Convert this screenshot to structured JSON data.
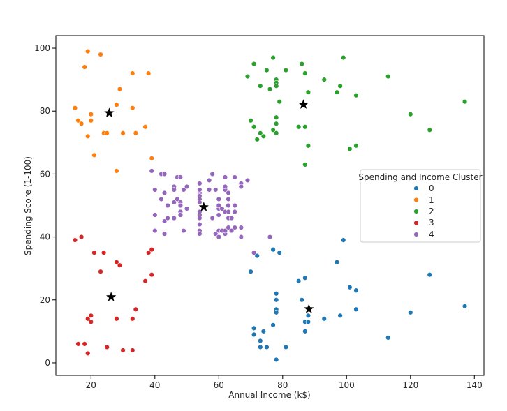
{
  "chart_data": {
    "type": "scatter",
    "title": "",
    "xlabel": "Annual Income (k$)",
    "ylabel": "Spending Score (1-100)",
    "xlim": [
      9,
      143
    ],
    "ylim": [
      -4,
      104
    ],
    "xticks": [
      "20",
      "40",
      "60",
      "80",
      "100",
      "120",
      "140"
    ],
    "yticks": [
      "0",
      "20",
      "40",
      "60",
      "80",
      "100"
    ],
    "legend": {
      "title": "Spending and Income Cluster",
      "position": "center-right",
      "entries": [
        "0",
        "1",
        "2",
        "3",
        "4"
      ]
    },
    "colors": [
      "#1f77b4",
      "#ff7f0e",
      "#2ca02c",
      "#d62728",
      "#9467bd"
    ],
    "series": [
      {
        "name": "0",
        "color": "#1f77b4",
        "points": [
          [
            71,
            11
          ],
          [
            71,
            9
          ],
          [
            72,
            34
          ],
          [
            73,
            5
          ],
          [
            73,
            7
          ],
          [
            74,
            10
          ],
          [
            75,
            5
          ],
          [
            77,
            36
          ],
          [
            77,
            12
          ],
          [
            78,
            22
          ],
          [
            78,
            20
          ],
          [
            78,
            17
          ],
          [
            78,
            16
          ],
          [
            78,
            1
          ],
          [
            79,
            35
          ],
          [
            81,
            5
          ],
          [
            85,
            26
          ],
          [
            86,
            20
          ],
          [
            87,
            27
          ],
          [
            87,
            13
          ],
          [
            87,
            10
          ],
          [
            88,
            13
          ],
          [
            88,
            15
          ],
          [
            93,
            14
          ],
          [
            97,
            32
          ],
          [
            98,
            15
          ],
          [
            99,
            39
          ],
          [
            101,
            24
          ],
          [
            103,
            23
          ],
          [
            103,
            17
          ],
          [
            113,
            8
          ],
          [
            120,
            16
          ],
          [
            126,
            28
          ],
          [
            137,
            18
          ],
          [
            70,
            29
          ]
        ]
      },
      {
        "name": "1",
        "color": "#ff7f0e",
        "points": [
          [
            15,
            81
          ],
          [
            16,
            77
          ],
          [
            17,
            76
          ],
          [
            18,
            94
          ],
          [
            19,
            72
          ],
          [
            19,
            99
          ],
          [
            20,
            77
          ],
          [
            20,
            79
          ],
          [
            21,
            66
          ],
          [
            23,
            98
          ],
          [
            24,
            73
          ],
          [
            25,
            73
          ],
          [
            28,
            82
          ],
          [
            28,
            61
          ],
          [
            29,
            87
          ],
          [
            30,
            73
          ],
          [
            33,
            92
          ],
          [
            33,
            81
          ],
          [
            34,
            73
          ],
          [
            37,
            75
          ],
          [
            38,
            92
          ],
          [
            39,
            65
          ]
        ]
      },
      {
        "name": "2",
        "color": "#2ca02c",
        "points": [
          [
            69,
            91
          ],
          [
            70,
            77
          ],
          [
            71,
            95
          ],
          [
            71,
            75
          ],
          [
            72,
            71
          ],
          [
            73,
            88
          ],
          [
            73,
            73
          ],
          [
            74,
            72
          ],
          [
            75,
            93
          ],
          [
            76,
            87
          ],
          [
            77,
            97
          ],
          [
            77,
            74
          ],
          [
            78,
            90
          ],
          [
            78,
            89
          ],
          [
            78,
            88
          ],
          [
            78,
            78
          ],
          [
            78,
            76
          ],
          [
            78,
            73
          ],
          [
            79,
            83
          ],
          [
            81,
            93
          ],
          [
            85,
            75
          ],
          [
            86,
            95
          ],
          [
            87,
            63
          ],
          [
            87,
            75
          ],
          [
            87,
            92
          ],
          [
            88,
            86
          ],
          [
            88,
            69
          ],
          [
            93,
            90
          ],
          [
            97,
            86
          ],
          [
            98,
            88
          ],
          [
            99,
            97
          ],
          [
            101,
            68
          ],
          [
            103,
            85
          ],
          [
            103,
            69
          ],
          [
            113,
            91
          ],
          [
            120,
            79
          ],
          [
            126,
            74
          ],
          [
            137,
            83
          ]
        ]
      },
      {
        "name": "3",
        "color": "#d62728",
        "points": [
          [
            15,
            39
          ],
          [
            16,
            6
          ],
          [
            17,
            40
          ],
          [
            18,
            6
          ],
          [
            19,
            3
          ],
          [
            19,
            14
          ],
          [
            20,
            15
          ],
          [
            20,
            13
          ],
          [
            21,
            35
          ],
          [
            23,
            29
          ],
          [
            24,
            35
          ],
          [
            25,
            5
          ],
          [
            28,
            14
          ],
          [
            28,
            32
          ],
          [
            29,
            31
          ],
          [
            30,
            4
          ],
          [
            33,
            4
          ],
          [
            33,
            14
          ],
          [
            34,
            17
          ],
          [
            37,
            26
          ],
          [
            38,
            35
          ],
          [
            39,
            36
          ],
          [
            39,
            28
          ]
        ]
      },
      {
        "name": "4",
        "color": "#9467bd",
        "points": [
          [
            39,
            61
          ],
          [
            40,
            55
          ],
          [
            40,
            47
          ],
          [
            40,
            42
          ],
          [
            42,
            52
          ],
          [
            42,
            60
          ],
          [
            43,
            54
          ],
          [
            43,
            60
          ],
          [
            43,
            45
          ],
          [
            43,
            41
          ],
          [
            44,
            50
          ],
          [
            44,
            46
          ],
          [
            46,
            51
          ],
          [
            46,
            46
          ],
          [
            46,
            56
          ],
          [
            46,
            55
          ],
          [
            47,
            52
          ],
          [
            47,
            59
          ],
          [
            48,
            51
          ],
          [
            48,
            59
          ],
          [
            48,
            50
          ],
          [
            48,
            48
          ],
          [
            48,
            47
          ],
          [
            49,
            55
          ],
          [
            49,
            42
          ],
          [
            50,
            49
          ],
          [
            50,
            56
          ],
          [
            54,
            47
          ],
          [
            54,
            54
          ],
          [
            54,
            53
          ],
          [
            54,
            48
          ],
          [
            54,
            52
          ],
          [
            54,
            42
          ],
          [
            54,
            51
          ],
          [
            54,
            55
          ],
          [
            54,
            41
          ],
          [
            54,
            44
          ],
          [
            54,
            57
          ],
          [
            54,
            46
          ],
          [
            57,
            58
          ],
          [
            57,
            55
          ],
          [
            58,
            60
          ],
          [
            58,
            46
          ],
          [
            59,
            55
          ],
          [
            59,
            41
          ],
          [
            60,
            49
          ],
          [
            60,
            40
          ],
          [
            60,
            42
          ],
          [
            60,
            52
          ],
          [
            60,
            47
          ],
          [
            60,
            50
          ],
          [
            61,
            42
          ],
          [
            61,
            49
          ],
          [
            62,
            41
          ],
          [
            62,
            48
          ],
          [
            62,
            59
          ],
          [
            62,
            55
          ],
          [
            62,
            56
          ],
          [
            62,
            42
          ],
          [
            63,
            50
          ],
          [
            63,
            46
          ],
          [
            63,
            43
          ],
          [
            63,
            48
          ],
          [
            63,
            52
          ],
          [
            63,
            54
          ],
          [
            64,
            42
          ],
          [
            64,
            46
          ],
          [
            65,
            48
          ],
          [
            65,
            50
          ],
          [
            65,
            43
          ],
          [
            65,
            59
          ],
          [
            67,
            43
          ],
          [
            67,
            57
          ],
          [
            67,
            56
          ],
          [
            67,
            40
          ],
          [
            69,
            58
          ],
          [
            71,
            35
          ],
          [
            76,
            40
          ]
        ]
      }
    ],
    "centroids": {
      "marker": "star",
      "color": "#000000",
      "points": [
        [
          25.7,
          79.4
        ],
        [
          55.3,
          49.5
        ],
        [
          86.5,
          82.1
        ],
        [
          26.3,
          20.9
        ],
        [
          88.2,
          17.1
        ]
      ]
    }
  }
}
